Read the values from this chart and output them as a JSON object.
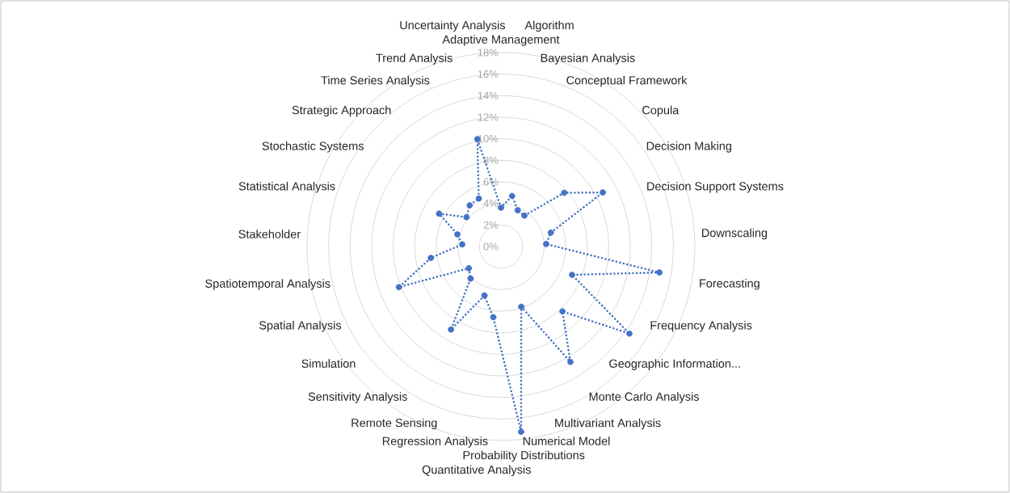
{
  "chart_data": {
    "type": "radar",
    "categories": [
      "Adaptive Management",
      "Algorithm",
      "Bayesian Analysis",
      "Conceptual Framework",
      "Copula",
      "Decision Making",
      "Decision Support Systems",
      "Downscaling",
      "Forecasting",
      "Frequency Analysis",
      "Geographic Information...",
      "Monte Carlo Analysis",
      "Multivariant Analysis",
      "Numerical Model",
      "Probability Distributions",
      "Quantitative Analysis",
      "Regression Analysis",
      "Remote Sensing",
      "Sensitivity Analysis",
      "Simulation",
      "Spatial Analysis",
      "Spatiotemporal Analysis",
      "Stakeholder",
      "Statistical Analysis",
      "Stochastic Systems",
      "Strategic Approach",
      "Time Series Analysis",
      "Trend Analysis",
      "Uncertainty Analysis"
    ],
    "series": [
      {
        "color": "#4472c4",
        "values": [
          3.6,
          4.8,
          3.7,
          3.6,
          7.7,
          10.7,
          4.8,
          4.2,
          14.9,
          7.1,
          14.4,
          8.3,
          12.5,
          5.9,
          17.3,
          6.6,
          4.8,
          9.0,
          4.1,
          3.6,
          10.2,
          6.6,
          3.6,
          4.2,
          6.5,
          4.2,
          4.8,
          4.9,
          10.2
        ]
      }
    ],
    "ylim": [
      0,
      18
    ],
    "yticks": [
      {
        "value": 0,
        "label": "0%"
      },
      {
        "value": 2,
        "label": "2%"
      },
      {
        "value": 4,
        "label": "4%"
      },
      {
        "value": 6,
        "label": "6%"
      },
      {
        "value": 8,
        "label": "8%"
      },
      {
        "value": 10,
        "label": "10%"
      },
      {
        "value": 12,
        "label": "12%"
      },
      {
        "value": 14,
        "label": "14%"
      },
      {
        "value": 16,
        "label": "16%"
      },
      {
        "value": 18,
        "label": "18%"
      }
    ],
    "grid": true,
    "marker": "circle",
    "line_style": "dotted"
  }
}
